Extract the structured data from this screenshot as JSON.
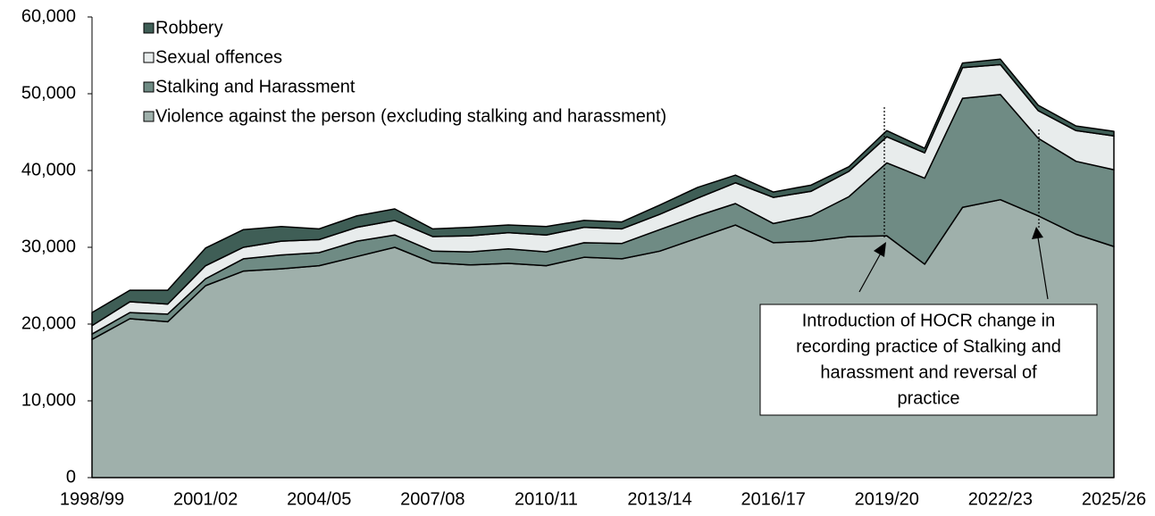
{
  "chart_data": {
    "type": "stacked_area",
    "categories": [
      "1998/99",
      null,
      null,
      "2001/02",
      null,
      null,
      "2004/05",
      null,
      null,
      "2007/08",
      null,
      null,
      "2010/11",
      null,
      null,
      "2013/14",
      null,
      null,
      "2016/17",
      null,
      null,
      "2019/20",
      null,
      null,
      "2022/23",
      null,
      null,
      "2025/26"
    ],
    "series": [
      {
        "name": "Violence against the person (excluding stalking and harassment)",
        "color": "#9fb0ab",
        "values": [
          18000,
          20700,
          20300,
          25000,
          26900,
          27200,
          27600,
          28800,
          30000,
          28000,
          27700,
          27900,
          27600,
          28700,
          28500,
          29500,
          31200,
          32900,
          30600,
          30800,
          31400,
          31500,
          27800,
          35200,
          36200,
          34100,
          31700,
          30100
        ]
      },
      {
        "name": "Stalking and Harassment",
        "color": "#6f8b84",
        "values": [
          700,
          800,
          1000,
          900,
          1600,
          1800,
          1700,
          2000,
          1600,
          1500,
          1700,
          1900,
          1800,
          1900,
          2000,
          2800,
          2900,
          2800,
          2500,
          3300,
          5200,
          9500,
          11200,
          14200,
          13700,
          10100,
          9500,
          10000
        ]
      },
      {
        "name": "Sexual offences",
        "color": "#e8ecec",
        "values": [
          1100,
          1400,
          1300,
          1700,
          1500,
          1800,
          1700,
          1800,
          1900,
          1900,
          2100,
          2100,
          2200,
          2000,
          1900,
          2000,
          2300,
          2700,
          3400,
          3200,
          3300,
          3400,
          3300,
          4000,
          3900,
          3600,
          4000,
          4400
        ]
      },
      {
        "name": "Robbery",
        "color": "#3f5e56",
        "values": [
          1700,
          1500,
          1800,
          2300,
          2300,
          1900,
          1400,
          1500,
          1500,
          1000,
          1100,
          1000,
          1100,
          900,
          900,
          1200,
          1400,
          1000,
          700,
          800,
          600,
          800,
          600,
          600,
          700,
          700,
          600,
          600
        ]
      }
    ],
    "ylim": [
      0,
      60000
    ],
    "yticks": [
      0,
      {
        "value": 10000,
        "label": "10,000"
      },
      {
        "value": 20000,
        "label": "20,000"
      },
      {
        "value": 30000,
        "label": "30,000"
      },
      {
        "value": 40000,
        "label": "40,000"
      },
      {
        "value": 50000,
        "label": "50,000"
      },
      {
        "value": 60000,
        "label": "60,000"
      }
    ],
    "legend": "top-left",
    "annotation": [
      "Introduction of HOCR change in",
      "recording practice of Stalking and",
      "harassment and reversal of",
      "practice"
    ]
  }
}
